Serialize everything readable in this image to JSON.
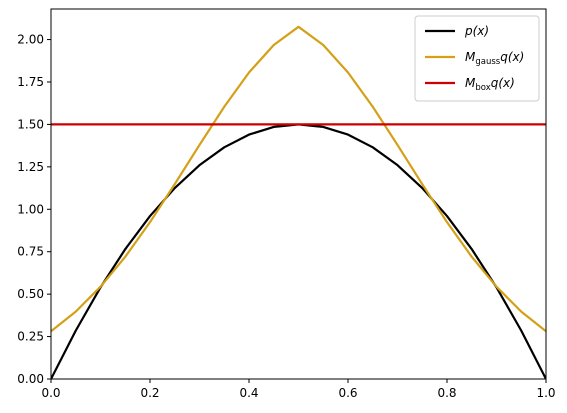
{
  "chart_data": {
    "type": "line",
    "xlim": [
      0.0,
      1.0
    ],
    "ylim": [
      0.0,
      2.18
    ],
    "grid": false,
    "legend_position": "top-right",
    "x_ticks": [
      {
        "value": 0.0,
        "label": "0.0"
      },
      {
        "value": 0.2,
        "label": "0.2"
      },
      {
        "value": 0.4,
        "label": "0.4"
      },
      {
        "value": 0.6,
        "label": "0.6"
      },
      {
        "value": 0.8,
        "label": "0.8"
      },
      {
        "value": 1.0,
        "label": "1.0"
      }
    ],
    "y_ticks": [
      {
        "value": 0.0,
        "label": "0.00"
      },
      {
        "value": 0.25,
        "label": "0.25"
      },
      {
        "value": 0.5,
        "label": "0.50"
      },
      {
        "value": 0.75,
        "label": "0.75"
      },
      {
        "value": 1.0,
        "label": "1.00"
      },
      {
        "value": 1.25,
        "label": "1.25"
      },
      {
        "value": 1.5,
        "label": "1.50"
      },
      {
        "value": 1.75,
        "label": "1.75"
      },
      {
        "value": 2.0,
        "label": "2.00"
      }
    ],
    "series": [
      {
        "name": "p(x)",
        "legend": {
          "main": "p",
          "sub": "",
          "rest": "(x)"
        },
        "color": "#000000",
        "x": [
          0.0,
          0.05,
          0.1,
          0.15,
          0.2,
          0.25,
          0.3,
          0.35,
          0.4,
          0.45,
          0.5,
          0.55,
          0.6,
          0.65,
          0.7,
          0.75,
          0.8,
          0.85,
          0.9,
          0.95,
          1.0
        ],
        "y": [
          0.0,
          0.285,
          0.54,
          0.765,
          0.96,
          1.125,
          1.26,
          1.365,
          1.44,
          1.485,
          1.5,
          1.485,
          1.44,
          1.365,
          1.26,
          1.125,
          0.96,
          0.765,
          0.54,
          0.285,
          0.0
        ]
      },
      {
        "name": "M_gauss q(x)",
        "legend": {
          "main": "M",
          "sub": "gauss",
          "rest": "q(x)"
        },
        "color": "#d4a017",
        "x": [
          0.0,
          0.05,
          0.1,
          0.15,
          0.2,
          0.25,
          0.3,
          0.35,
          0.4,
          0.45,
          0.5,
          0.55,
          0.6,
          0.65,
          0.7,
          0.75,
          0.8,
          0.85,
          0.9,
          0.95,
          1.0
        ],
        "y": [
          0.281,
          0.397,
          0.544,
          0.72,
          0.924,
          1.148,
          1.379,
          1.604,
          1.806,
          1.968,
          2.075,
          1.968,
          1.806,
          1.604,
          1.379,
          1.148,
          0.924,
          0.72,
          0.544,
          0.397,
          0.281
        ]
      },
      {
        "name": "M_box q(x)",
        "legend": {
          "main": "M",
          "sub": "box",
          "rest": "q(x)"
        },
        "color": "#cc0000",
        "x": [
          0.0,
          1.0
        ],
        "y": [
          1.5,
          1.5
        ]
      }
    ]
  }
}
